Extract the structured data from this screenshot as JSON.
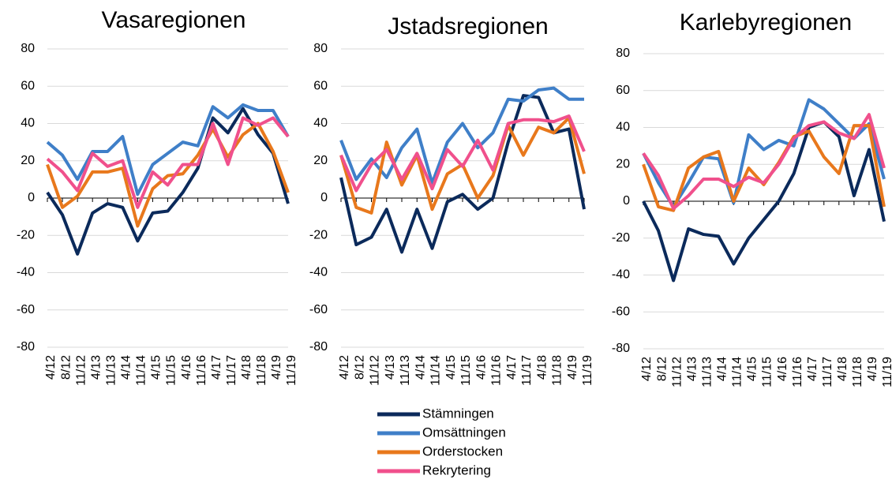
{
  "chart_data": [
    {
      "type": "line",
      "title": "Vasaregionen",
      "categories": [
        "4/12",
        "8/12",
        "11/12",
        "4/13",
        "11/13",
        "4/14",
        "11/14",
        "4/15",
        "11/15",
        "4/16",
        "11/16",
        "4/17",
        "11/17",
        "4/18",
        "11/18",
        "4/19",
        "11/19"
      ],
      "ylim": [
        -80,
        80
      ],
      "yticks": [
        -80,
        -60,
        -40,
        -20,
        0,
        20,
        40,
        60,
        80
      ],
      "grid": true,
      "series": [
        {
          "name": "Stämningen",
          "color": "#0b2a5b",
          "values": [
            3,
            -9,
            -30,
            -8,
            -3,
            -5,
            -23,
            -8,
            -7,
            3,
            16,
            43,
            35,
            48,
            34,
            24,
            -3
          ]
        },
        {
          "name": "Omsättningen",
          "color": "#3f7fc8",
          "values": [
            30,
            23,
            10,
            25,
            25,
            33,
            2,
            18,
            24,
            30,
            28,
            49,
            43,
            50,
            47,
            47,
            33
          ]
        },
        {
          "name": "Orderstocken",
          "color": "#e8781c",
          "values": [
            18,
            -5,
            1,
            14,
            14,
            16,
            -15,
            5,
            12,
            13,
            23,
            37,
            22,
            34,
            40,
            25,
            3
          ]
        },
        {
          "name": "Rekrytering",
          "color": "#f0508c",
          "values": [
            21,
            14,
            4,
            24,
            17,
            20,
            -5,
            14,
            7,
            18,
            18,
            40,
            18,
            43,
            39,
            43,
            33
          ]
        }
      ]
    },
    {
      "type": "line",
      "title": "Jstadsregionen",
      "categories": [
        "4/12",
        "8/12",
        "11/12",
        "4/13",
        "11/13",
        "4/14",
        "11/14",
        "4/15",
        "11/15",
        "4/16",
        "11/16",
        "4/17",
        "11/17",
        "4/18",
        "11/18",
        "4/19",
        "11/19"
      ],
      "ylim": [
        -80,
        80
      ],
      "yticks": [
        -80,
        -60,
        -40,
        -20,
        0,
        20,
        40,
        60,
        80
      ],
      "grid": true,
      "series": [
        {
          "name": "Stämningen",
          "color": "#0b2a5b",
          "values": [
            11,
            -25,
            -21,
            -6,
            -29,
            -6,
            -27,
            -2,
            2,
            -6,
            0,
            30,
            55,
            54,
            35,
            37,
            -6
          ]
        },
        {
          "name": "Omsättningen",
          "color": "#3f7fc8",
          "values": [
            31,
            10,
            21,
            11,
            27,
            37,
            8,
            30,
            40,
            27,
            35,
            53,
            52,
            58,
            59,
            53,
            53
          ]
        },
        {
          "name": "Orderstocken",
          "color": "#e8781c",
          "values": [
            23,
            -5,
            -8,
            30,
            7,
            23,
            -6,
            13,
            18,
            0,
            12,
            39,
            23,
            38,
            35,
            43,
            13
          ]
        },
        {
          "name": "Rekrytering",
          "color": "#f0508c",
          "values": [
            23,
            4,
            18,
            26,
            10,
            24,
            5,
            26,
            17,
            31,
            15,
            40,
            42,
            42,
            41,
            44,
            25
          ]
        }
      ]
    },
    {
      "type": "line",
      "title": "Karlebyregionen",
      "categories": [
        "4/12",
        "8/12",
        "11/12",
        "4/13",
        "11/13",
        "4/14",
        "11/14",
        "4/15",
        "11/15",
        "4/16",
        "11/16",
        "4/17",
        "11/17",
        "4/18",
        "11/18",
        "4/19",
        "11/19"
      ],
      "ylim": [
        -80,
        80
      ],
      "yticks": [
        -80,
        -60,
        -40,
        -20,
        0,
        20,
        40,
        60,
        80
      ],
      "grid": true,
      "series": [
        {
          "name": "Stämningen",
          "color": "#0b2a5b",
          "values": [
            0,
            -16,
            -43,
            -15,
            -18,
            -19,
            -34,
            -20,
            -10,
            0,
            15,
            40,
            43,
            35,
            3,
            28,
            -11
          ]
        },
        {
          "name": "Omsättningen",
          "color": "#3f7fc8",
          "values": [
            26,
            10,
            -3,
            10,
            24,
            23,
            -1,
            36,
            28,
            33,
            30,
            55,
            50,
            42,
            34,
            42,
            12
          ]
        },
        {
          "name": "Orderstocken",
          "color": "#e8781c",
          "values": [
            20,
            -3,
            -5,
            18,
            24,
            27,
            0,
            18,
            9,
            21,
            35,
            38,
            24,
            15,
            41,
            41,
            -3
          ]
        },
        {
          "name": "Rekrytering",
          "color": "#f0508c",
          "values": [
            26,
            14,
            -4,
            3,
            12,
            12,
            8,
            13,
            10,
            20,
            34,
            41,
            43,
            37,
            34,
            47,
            18
          ]
        }
      ]
    }
  ]
}
